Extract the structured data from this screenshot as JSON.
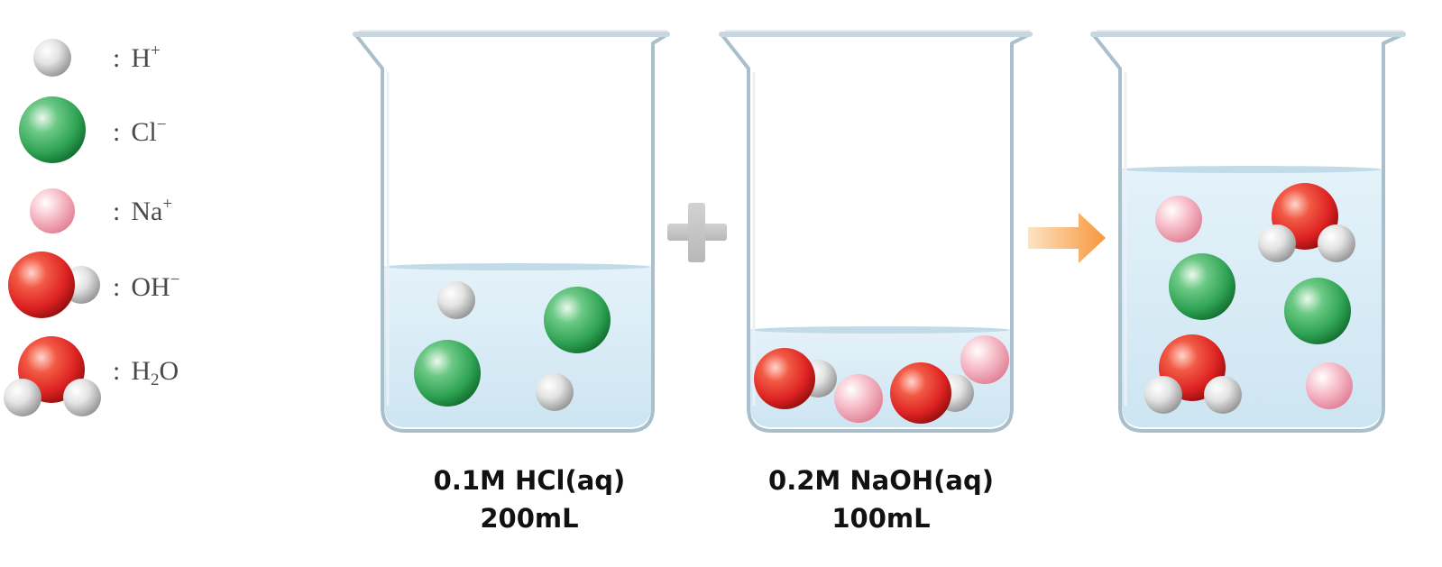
{
  "legend": [
    {
      "key": "h_ion",
      "colon": ":",
      "base": "H",
      "sup": "+",
      "sub": "",
      "tail": ""
    },
    {
      "key": "cl_ion",
      "colon": ":",
      "base": "Cl",
      "sup": "−",
      "sub": "",
      "tail": ""
    },
    {
      "key": "na_ion",
      "colon": ":",
      "base": "Na",
      "sup": "+",
      "sub": "",
      "tail": ""
    },
    {
      "key": "oh_ion",
      "colon": ":",
      "base": "OH",
      "sup": "−",
      "sub": "",
      "tail": ""
    },
    {
      "key": "water",
      "colon": ":",
      "base": "H",
      "sup": "",
      "sub": "2",
      "tail": "O"
    }
  ],
  "beakers": [
    {
      "key": "hcl",
      "caption_line1": "0.1M HCl(aq)",
      "caption_line2": "200mL",
      "liquid_level": 0.62
    },
    {
      "key": "naoh",
      "caption_line1": "0.2M NaOH(aq)",
      "caption_line2": "100mL",
      "liquid_level": 0.24
    },
    {
      "key": "mixture",
      "caption_line1": "",
      "caption_line2": "",
      "liquid_level": 0.95
    }
  ],
  "operators": {
    "plus_symbol": "+",
    "arrow": "right-arrow-icon"
  },
  "colors": {
    "h_ion": "#d8d8d8",
    "cl_ion": "#2fa353",
    "na_ion": "#f4a6b6",
    "oxygen": "#dd2222",
    "liquid": "#d7ecf6",
    "plus": "#c6c6c6",
    "arrow": "#f7a44c"
  }
}
